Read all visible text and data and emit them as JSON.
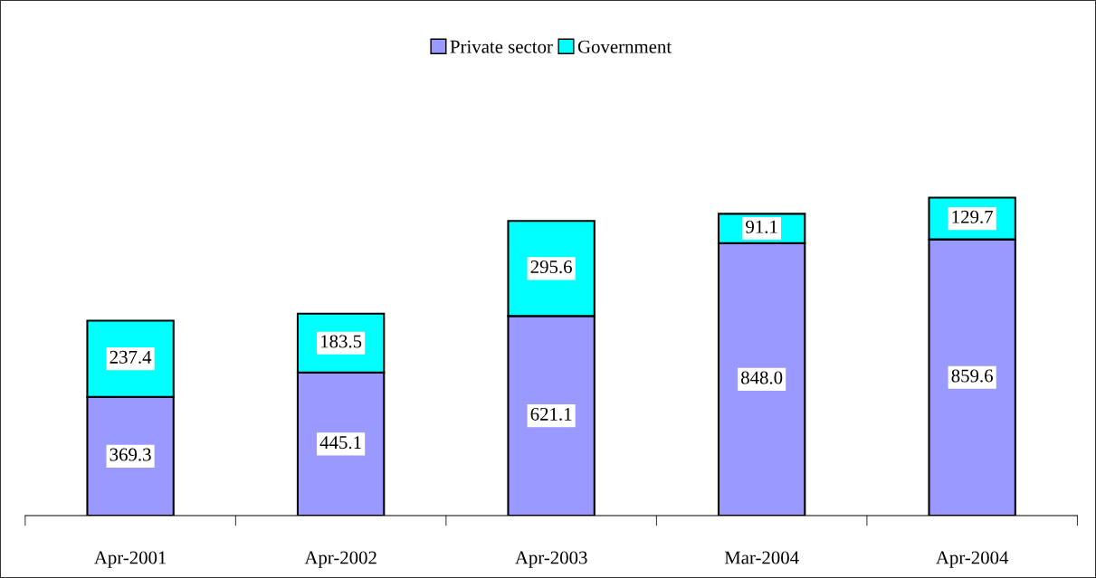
{
  "chart_data": {
    "type": "bar",
    "stacked": true,
    "legend": "top",
    "grid": false,
    "categories": [
      "Apr-2001",
      "Apr-2002",
      "Apr-2003",
      "Mar-2004",
      "Apr-2004"
    ],
    "series": [
      {
        "name": "Private sector",
        "color": "#9999ff",
        "values": [
          369.3,
          445.1,
          621.1,
          848.0,
          859.6
        ],
        "value_labels": [
          "369.3",
          "445.1",
          "621.1",
          "848.0",
          "859.6"
        ]
      },
      {
        "name": "Government",
        "color": "#00ffff",
        "values": [
          237.4,
          183.5,
          295.6,
          91.1,
          129.7
        ],
        "value_labels": [
          "237.4",
          "183.5",
          "295.6",
          "91.1",
          "129.7"
        ]
      }
    ]
  }
}
